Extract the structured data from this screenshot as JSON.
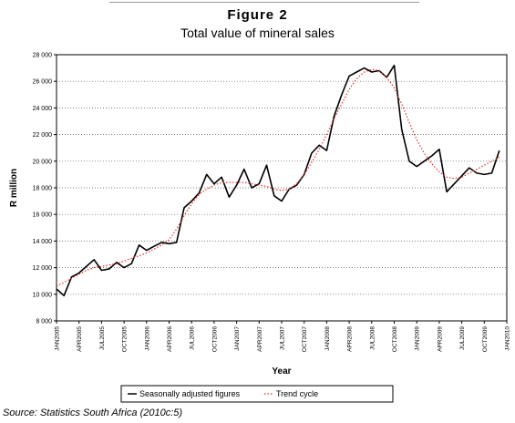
{
  "figure": {
    "label": "Figure 2",
    "title": "Total value of mineral sales",
    "source": "Source: Statistics South Africa (2010c:5)"
  },
  "chart_data": {
    "type": "line",
    "title": "Total value of mineral sales",
    "xlabel": "Year",
    "ylabel": "R million",
    "ylim": [
      8000,
      28000
    ],
    "yticks": [
      8000,
      10000,
      12000,
      14000,
      16000,
      18000,
      20000,
      22000,
      24000,
      26000,
      28000
    ],
    "ytick_labels": [
      "8 000",
      "10 000",
      "12 000",
      "14 000",
      "16 000",
      "18 000",
      "20 000",
      "22 000",
      "24 000",
      "26 000",
      "28 000"
    ],
    "xtick_labels": [
      "JAN2005",
      "APR2005",
      "JUL2005",
      "OCT2005",
      "JAN2006",
      "APR2006",
      "JUL2006",
      "OCT2006",
      "JAN2007",
      "APR2007",
      "JUL2007",
      "OCT2007",
      "JAN2008",
      "APR2008",
      "JUL2008",
      "OCT2008",
      "JAN2009",
      "APR2009",
      "JUL2009",
      "OCT2009",
      "JAN2010"
    ],
    "x": [
      "2005-01",
      "2005-02",
      "2005-03",
      "2005-04",
      "2005-05",
      "2005-06",
      "2005-07",
      "2005-08",
      "2005-09",
      "2005-10",
      "2005-11",
      "2005-12",
      "2006-01",
      "2006-02",
      "2006-03",
      "2006-04",
      "2006-05",
      "2006-06",
      "2006-07",
      "2006-08",
      "2006-09",
      "2006-10",
      "2006-11",
      "2006-12",
      "2007-01",
      "2007-02",
      "2007-03",
      "2007-04",
      "2007-05",
      "2007-06",
      "2007-07",
      "2007-08",
      "2007-09",
      "2007-10",
      "2007-11",
      "2007-12",
      "2008-01",
      "2008-02",
      "2008-03",
      "2008-04",
      "2008-05",
      "2008-06",
      "2008-07",
      "2008-08",
      "2008-09",
      "2008-10",
      "2008-11",
      "2008-12",
      "2009-01",
      "2009-02",
      "2009-03",
      "2009-04",
      "2009-05",
      "2009-06",
      "2009-07",
      "2009-08",
      "2009-09",
      "2009-10",
      "2009-11",
      "2009-12"
    ],
    "series": [
      {
        "name": "Seasonally adjusted figures",
        "style": "solid",
        "color": "#000000",
        "values": [
          10400,
          9900,
          11300,
          11600,
          12100,
          12600,
          11800,
          11900,
          12400,
          12000,
          12300,
          13700,
          13300,
          13600,
          13900,
          13800,
          13900,
          16500,
          17000,
          17600,
          19000,
          18300,
          18800,
          17300,
          18200,
          19400,
          18000,
          18300,
          19700,
          17400,
          17000,
          17900,
          18200,
          19000,
          20600,
          21200,
          20800,
          23400,
          25000,
          26400,
          26700,
          27000,
          26700,
          26800,
          26300,
          27200,
          22400,
          20000,
          19600,
          20000,
          20400,
          20900,
          17700,
          18300,
          18900,
          19500,
          19100,
          19000,
          19100,
          20800
        ]
      },
      {
        "name": "Trend cycle",
        "style": "dotted",
        "color": "#e0302a",
        "values": [
          10600,
          10900,
          11200,
          11500,
          11800,
          12000,
          12100,
          12200,
          12300,
          12500,
          12700,
          12900,
          13100,
          13400,
          13700,
          14100,
          14900,
          15900,
          16800,
          17500,
          17900,
          18200,
          18400,
          18400,
          18400,
          18400,
          18300,
          18200,
          18100,
          17900,
          17800,
          17900,
          18300,
          19000,
          19900,
          20900,
          22000,
          23200,
          24300,
          25400,
          26200,
          26700,
          26900,
          26800,
          26300,
          25500,
          24300,
          22900,
          21600,
          20600,
          19800,
          19200,
          18800,
          18700,
          18800,
          19100,
          19400,
          19700,
          20000,
          20300
        ]
      }
    ],
    "legend": {
      "position": "bottom",
      "entries": [
        "Seasonally adjusted figures",
        "Trend cycle"
      ]
    },
    "grid": "horizontal dotted"
  }
}
